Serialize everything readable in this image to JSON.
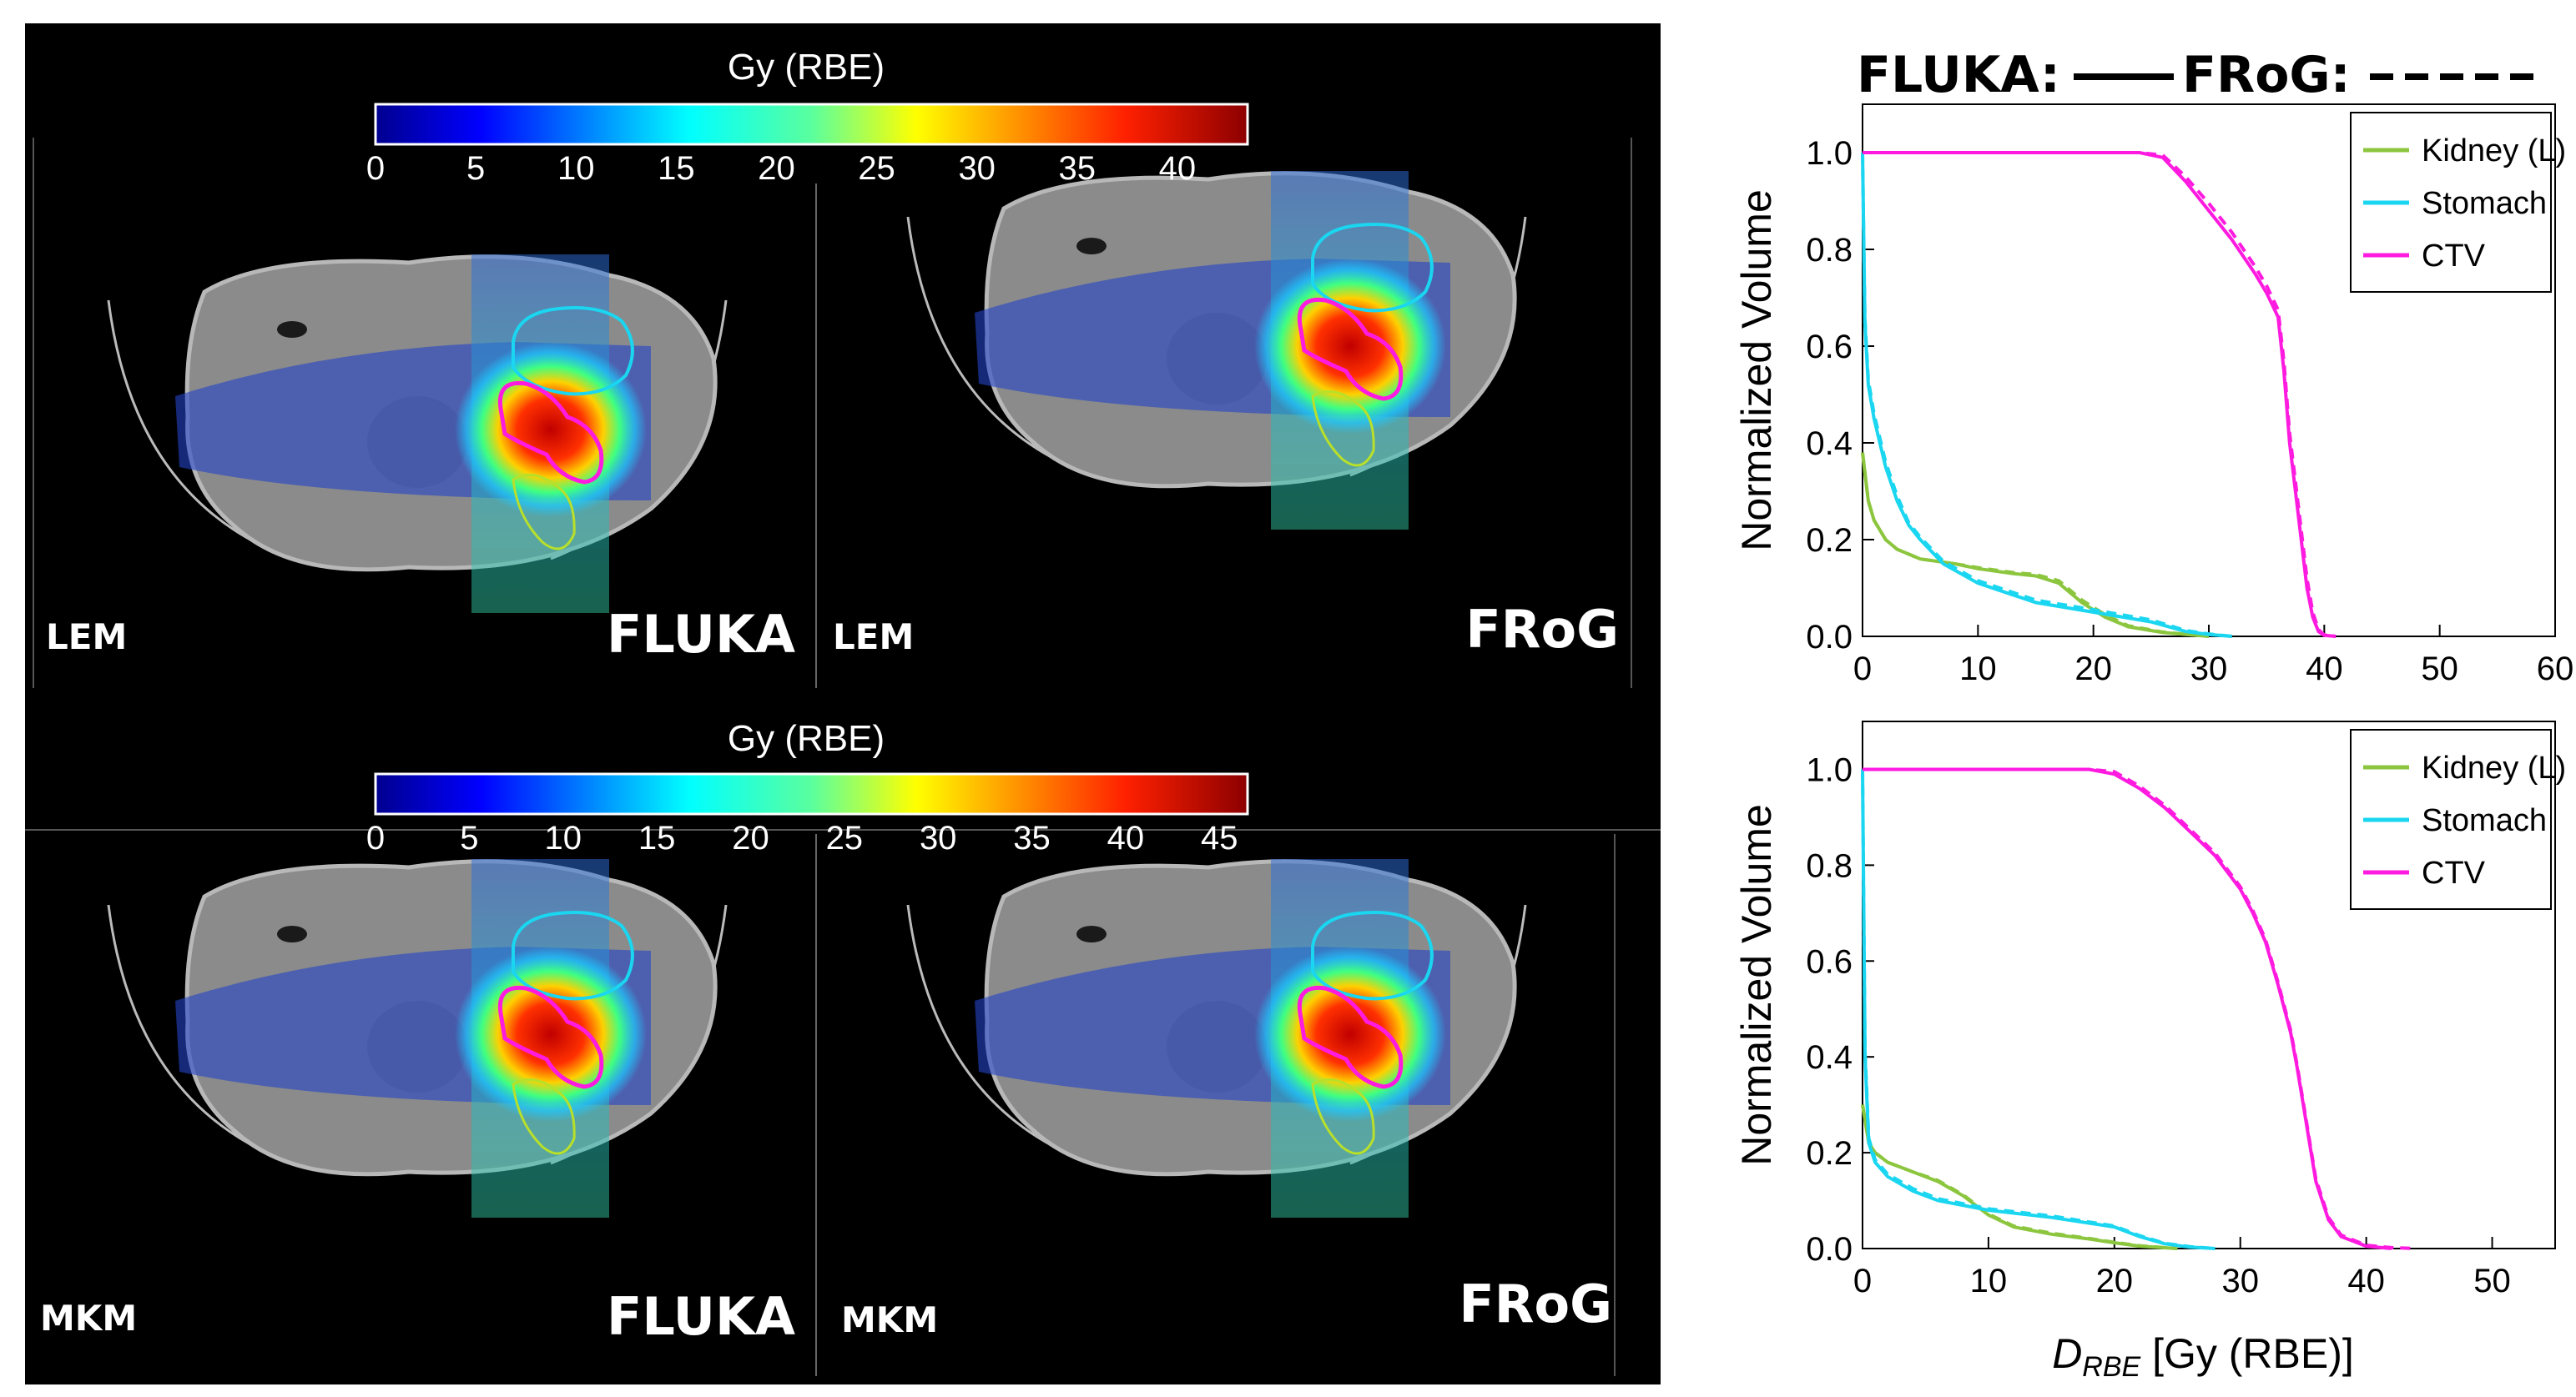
{
  "colors": {
    "kidney": "#8cc63f",
    "stomach": "#1ad6f0",
    "ctv": "#ff1ae0",
    "panel_bg": "#000000"
  },
  "colorbar_top": {
    "title": "Gy (RBE)",
    "ticks": [
      "0",
      "5",
      "10",
      "15",
      "20",
      "25",
      "30",
      "35",
      "40"
    ],
    "max": 43.5
  },
  "colorbar_bottom": {
    "title": "Gy (RBE)",
    "ticks": [
      "0",
      "5",
      "10",
      "15",
      "20",
      "25",
      "30",
      "35",
      "40",
      "45"
    ],
    "max": 46.5
  },
  "panels": {
    "top_left": {
      "model": "LEM",
      "engine": "FLUKA"
    },
    "top_right": {
      "model": "LEM",
      "engine": "FRoG"
    },
    "bottom_left": {
      "model": "MKM",
      "engine": "FLUKA"
    },
    "bottom_right": {
      "model": "MKM",
      "engine": "FRoG"
    }
  },
  "dvh_legend_title": {
    "fluka": "FLUKA:",
    "frog": "FRoG:"
  },
  "chart_data": [
    {
      "type": "line",
      "title": "FLUKA: (solid)  FRoG: (dashed)",
      "xlabel": "",
      "ylabel": "Normalized Volume",
      "xlim": [
        0,
        60
      ],
      "ylim": [
        0,
        1.1
      ],
      "xticks": [
        "0",
        "10",
        "20",
        "30",
        "40",
        "50",
        "60"
      ],
      "yticks": [
        "0.0",
        "0.2",
        "0.4",
        "0.6",
        "0.8",
        "1.0"
      ],
      "legend": [
        "Kidney (L)",
        "Stomach",
        "CTV"
      ],
      "series": [
        {
          "name": "Kidney (L)",
          "style": "solid",
          "x": [
            0,
            0.5,
            1,
            2,
            3,
            5,
            8,
            10,
            13,
            15,
            17,
            19,
            21,
            23,
            26,
            30
          ],
          "y": [
            0.38,
            0.28,
            0.24,
            0.2,
            0.18,
            0.16,
            0.15,
            0.14,
            0.13,
            0.125,
            0.11,
            0.07,
            0.04,
            0.02,
            0.008,
            0.0
          ]
        },
        {
          "name": "Kidney (L)",
          "style": "dashed",
          "x": [
            0,
            0.5,
            1,
            2,
            3,
            5,
            8,
            10,
            13,
            15,
            17,
            19,
            21,
            23,
            26,
            30
          ],
          "y": [
            0.38,
            0.28,
            0.24,
            0.2,
            0.18,
            0.16,
            0.15,
            0.142,
            0.132,
            0.128,
            0.115,
            0.075,
            0.045,
            0.022,
            0.009,
            0.0
          ]
        },
        {
          "name": "Stomach",
          "style": "solid",
          "x": [
            0,
            0.2,
            0.5,
            1,
            2,
            3,
            4,
            5,
            7,
            10,
            15,
            20,
            25,
            28,
            30,
            32
          ],
          "y": [
            1.0,
            0.65,
            0.52,
            0.45,
            0.35,
            0.28,
            0.23,
            0.2,
            0.15,
            0.11,
            0.07,
            0.05,
            0.03,
            0.01,
            0.004,
            0.0
          ]
        },
        {
          "name": "Stomach",
          "style": "dashed",
          "x": [
            0,
            0.2,
            0.5,
            1,
            2,
            3,
            4,
            5,
            7,
            10,
            15,
            20,
            25,
            28,
            30,
            32
          ],
          "y": [
            1.0,
            0.66,
            0.53,
            0.46,
            0.36,
            0.29,
            0.235,
            0.205,
            0.155,
            0.115,
            0.075,
            0.055,
            0.034,
            0.012,
            0.005,
            0.0
          ]
        },
        {
          "name": "CTV",
          "style": "solid",
          "x": [
            0,
            24,
            26,
            28,
            30,
            32,
            34,
            35,
            36,
            36.5,
            37,
            37.5,
            38,
            38.5,
            39,
            39.5,
            40,
            41
          ],
          "y": [
            1.0,
            1.0,
            0.99,
            0.94,
            0.88,
            0.82,
            0.75,
            0.71,
            0.66,
            0.55,
            0.4,
            0.3,
            0.2,
            0.1,
            0.04,
            0.01,
            0.002,
            0.0
          ]
        },
        {
          "name": "CTV",
          "style": "dashed",
          "x": [
            0,
            24,
            26,
            28,
            30,
            32,
            34,
            35,
            36,
            36.5,
            37,
            37.5,
            38,
            38.5,
            39,
            39.5,
            40,
            41
          ],
          "y": [
            1.0,
            1.0,
            0.995,
            0.95,
            0.895,
            0.835,
            0.765,
            0.725,
            0.675,
            0.57,
            0.42,
            0.32,
            0.22,
            0.12,
            0.05,
            0.014,
            0.003,
            0.0
          ]
        }
      ]
    },
    {
      "type": "line",
      "xlabel": "DRBE [Gy (RBE)]",
      "ylabel": "Normalized Volume",
      "xlim": [
        0,
        55
      ],
      "ylim": [
        0,
        1.1
      ],
      "xticks": [
        "0",
        "10",
        "20",
        "30",
        "40",
        "50"
      ],
      "yticks": [
        "0.0",
        "0.2",
        "0.4",
        "0.6",
        "0.8",
        "1.0"
      ],
      "legend": [
        "Kidney (L)",
        "Stomach",
        "CTV"
      ],
      "series": [
        {
          "name": "Kidney (L)",
          "style": "solid",
          "x": [
            0,
            0.5,
            1,
            2,
            4,
            6,
            8,
            10,
            12,
            15,
            18,
            20,
            22,
            25
          ],
          "y": [
            0.3,
            0.22,
            0.2,
            0.18,
            0.16,
            0.14,
            0.11,
            0.07,
            0.045,
            0.03,
            0.02,
            0.012,
            0.005,
            0.0
          ]
        },
        {
          "name": "Kidney (L)",
          "style": "dashed",
          "x": [
            0,
            0.5,
            1,
            2,
            4,
            6,
            8,
            10,
            12,
            15,
            18,
            20,
            22,
            25
          ],
          "y": [
            0.3,
            0.22,
            0.2,
            0.18,
            0.16,
            0.142,
            0.112,
            0.072,
            0.047,
            0.032,
            0.021,
            0.013,
            0.006,
            0.0
          ]
        },
        {
          "name": "Stomach",
          "style": "solid",
          "x": [
            0,
            0.2,
            0.5,
            1,
            2,
            4,
            6,
            10,
            15,
            20,
            22,
            24,
            26,
            28
          ],
          "y": [
            1.0,
            0.4,
            0.22,
            0.18,
            0.15,
            0.12,
            0.1,
            0.08,
            0.065,
            0.045,
            0.025,
            0.01,
            0.003,
            0.0
          ]
        },
        {
          "name": "Stomach",
          "style": "dashed",
          "x": [
            0,
            0.2,
            0.5,
            1,
            2,
            4,
            6,
            10,
            15,
            20,
            22,
            24,
            26,
            28
          ],
          "y": [
            1.0,
            0.41,
            0.23,
            0.185,
            0.155,
            0.125,
            0.104,
            0.083,
            0.068,
            0.047,
            0.027,
            0.011,
            0.004,
            0.0
          ]
        },
        {
          "name": "CTV",
          "style": "solid",
          "x": [
            0,
            18,
            20,
            22,
            24,
            26,
            28,
            30,
            31,
            32,
            33,
            34,
            34.5,
            35,
            35.5,
            36,
            37,
            38,
            40,
            42
          ],
          "y": [
            1.0,
            1.0,
            0.99,
            0.96,
            0.92,
            0.87,
            0.82,
            0.75,
            0.7,
            0.64,
            0.55,
            0.45,
            0.38,
            0.3,
            0.22,
            0.14,
            0.06,
            0.025,
            0.005,
            0.0
          ]
        },
        {
          "name": "CTV",
          "style": "dashed",
          "x": [
            0,
            18,
            20,
            22,
            24,
            26,
            28,
            30,
            31,
            32,
            33,
            34,
            34.5,
            35,
            35.5,
            36,
            37,
            38,
            40,
            42,
            44
          ],
          "y": [
            1.0,
            1.0,
            0.995,
            0.965,
            0.925,
            0.875,
            0.825,
            0.755,
            0.705,
            0.645,
            0.555,
            0.455,
            0.385,
            0.305,
            0.225,
            0.145,
            0.065,
            0.028,
            0.007,
            0.002,
            0.0
          ]
        }
      ]
    }
  ]
}
